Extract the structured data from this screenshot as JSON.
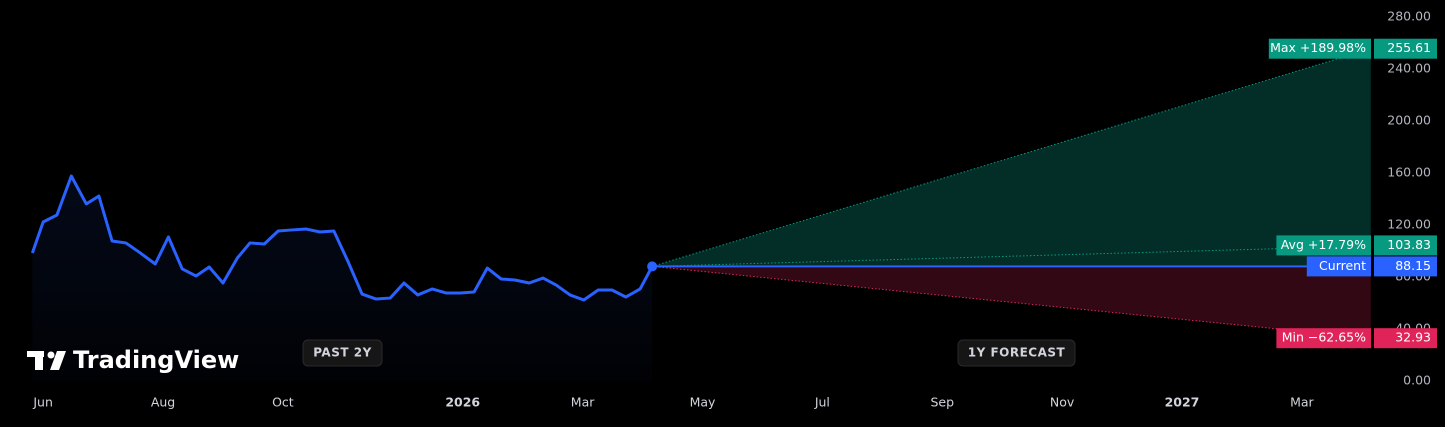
{
  "chart_data": {
    "type": "forecast",
    "xlim": [
      -0.72,
      22.22
    ],
    "xticks": [
      {
        "value": 0,
        "label": "Jun"
      },
      {
        "value": 2,
        "label": "Aug"
      },
      {
        "value": 4,
        "label": "Oct"
      },
      {
        "value": 7,
        "label": "2026"
      },
      {
        "value": 9,
        "label": "Mar"
      },
      {
        "value": 11,
        "label": "May"
      },
      {
        "value": 13,
        "label": "Jul"
      },
      {
        "value": 15,
        "label": "Sep"
      },
      {
        "value": 17,
        "label": "Nov"
      },
      {
        "value": 19,
        "label": "2027"
      },
      {
        "value": 21,
        "label": "Mar"
      }
    ],
    "ylim": [
      0,
      280
    ],
    "yticks": [
      {
        "value": 0,
        "label": "0.00"
      },
      {
        "value": 40,
        "label": "40.00"
      },
      {
        "value": 80,
        "label": "80.00"
      },
      {
        "value": 120,
        "label": "120.00"
      },
      {
        "value": 160,
        "label": "160.00"
      },
      {
        "value": 200,
        "label": "200.00"
      },
      {
        "value": 240,
        "label": "240.00"
      },
      {
        "value": 280,
        "label": "280.00"
      }
    ],
    "past": {
      "color": "#2962ff",
      "x": [
        -0.18,
        0,
        0.23,
        0.47,
        0.72,
        0.93,
        1.15,
        1.38,
        1.62,
        1.87,
        2.09,
        2.32,
        2.55,
        2.77,
        3.0,
        3.24,
        3.45,
        3.69,
        3.92,
        4.15,
        4.39,
        4.62,
        4.85,
        5.09,
        5.32,
        5.55,
        5.79,
        6.02,
        6.25,
        6.49,
        6.72,
        6.96,
        7.19,
        7.41,
        7.64,
        7.87,
        8.11,
        8.34,
        8.56,
        8.79,
        9.02,
        9.26,
        9.49,
        9.72,
        9.96,
        10.16
      ],
      "values": [
        98.5,
        122.3,
        127.7,
        157.7,
        136.2,
        142.3,
        107.7,
        106.2,
        98.5,
        90.0,
        110.8,
        86.2,
        80.8,
        87.7,
        75.4,
        94.6,
        106.2,
        105.4,
        115.4,
        116.2,
        116.9,
        114.6,
        115.4,
        91.5,
        66.9,
        63.1,
        63.8,
        75.4,
        66.2,
        70.8,
        67.7,
        67.7,
        68.5,
        86.9,
        78.5,
        77.7,
        75.4,
        79.2,
        73.8,
        66.2,
        62.3,
        70.0,
        70.0,
        64.6,
        70.8,
        88.15
      ]
    },
    "past_label": "PAST 2Y",
    "forecast_label": "1Y FORECAST",
    "forecast": {
      "end_x": 22.15,
      "current": 88.15,
      "current_label": "Current",
      "current_color": "#2962ff",
      "targets": [
        {
          "name": "Max +189.98%",
          "value": 255.61,
          "color": "#089981"
        },
        {
          "name": "Avg +17.79%",
          "value": 103.83,
          "color": "#089981"
        },
        {
          "name": "Min −62.65%",
          "value": 32.93,
          "color": "#e0245a"
        }
      ]
    },
    "brand": "TradingView"
  }
}
